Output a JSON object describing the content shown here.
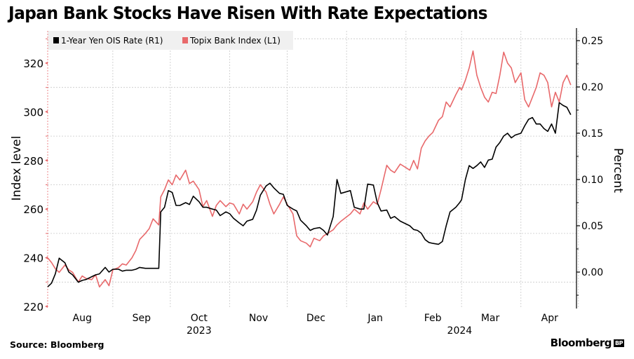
{
  "title": "Japan Bank Stocks Have Risen With Rate Expectations",
  "source": "Source: Bloomberg",
  "brand": "Bloomberg",
  "brand_badge": "BP",
  "colors": {
    "ois": "#000000",
    "topix": "#e8696b",
    "grid": "#c8c8c8",
    "legend_bg": "#f0f0f0"
  },
  "chart_data": {
    "type": "line",
    "title": "Japan Bank Stocks Have Risen With Rate Expectations",
    "xlabel": "",
    "x_range": [
      "2023-07-29",
      "2024-04-30"
    ],
    "x_month_labels": [
      "Aug",
      "Sep",
      "Oct",
      "Nov",
      "Dec",
      "Jan",
      "Feb",
      "Mar",
      "Apr"
    ],
    "x_month_dates": [
      "2023-08-16",
      "2023-09-16",
      "2023-10-16",
      "2023-11-16",
      "2023-12-16",
      "2024-01-16",
      "2024-02-15",
      "2024-03-16",
      "2024-04-16"
    ],
    "x_year_labels": [
      {
        "label": "2023",
        "date": "2023-10-16"
      },
      {
        "label": "2024",
        "date": "2024-02-29"
      }
    ],
    "x_gridlines": [
      "2023-09-01",
      "2023-10-01",
      "2023-11-01",
      "2023-12-01",
      "2024-01-01",
      "2024-02-01",
      "2024-03-01",
      "2024-04-01",
      "2024-05-01"
    ],
    "left_axis": {
      "label": "Index level",
      "ylim": [
        218,
        332
      ],
      "ticks": [
        220,
        240,
        260,
        280,
        300,
        320
      ],
      "minor_ticks": [
        230,
        250,
        270,
        290,
        310,
        330
      ]
    },
    "right_axis": {
      "label": "Percent",
      "ylim": [
        -0.04,
        0.26
      ],
      "ticks": [
        0.0,
        0.05,
        0.1,
        0.15,
        0.2,
        0.25
      ],
      "tick_labels": [
        "0.00",
        "0.05",
        "0.10",
        "0.15",
        "0.20",
        "0.25"
      ],
      "minor_ticks": [
        -0.025,
        0.025,
        0.075,
        0.125,
        0.175,
        0.225
      ]
    },
    "legend": {
      "placement": "top-left",
      "entries": [
        "1-Year Yen OIS Rate (R1)",
        "Topix Bank Index (L1)"
      ]
    },
    "grid": true,
    "series": [
      {
        "name": "1-Year Yen OIS Rate (R1)",
        "axis": "right",
        "color": "#000000",
        "points": [
          [
            "2023-07-29",
            -0.016
          ],
          [
            "2023-07-31",
            -0.012
          ],
          [
            "2023-08-02",
            -0.002
          ],
          [
            "2023-08-04",
            0.015
          ],
          [
            "2023-08-07",
            0.01
          ],
          [
            "2023-08-09",
            0.0
          ],
          [
            "2023-08-11",
            -0.003
          ],
          [
            "2023-08-14",
            -0.011
          ],
          [
            "2023-08-16",
            -0.009
          ],
          [
            "2023-08-18",
            -0.008
          ],
          [
            "2023-08-21",
            -0.005
          ],
          [
            "2023-08-23",
            -0.003
          ],
          [
            "2023-08-25",
            -0.002
          ],
          [
            "2023-08-28",
            0.005
          ],
          [
            "2023-08-30",
            0.0
          ],
          [
            "2023-09-01",
            0.003
          ],
          [
            "2023-09-04",
            0.003
          ],
          [
            "2023-09-06",
            0.001
          ],
          [
            "2023-09-08",
            0.002
          ],
          [
            "2023-09-11",
            0.002
          ],
          [
            "2023-09-13",
            0.003
          ],
          [
            "2023-09-15",
            0.005
          ],
          [
            "2023-09-18",
            0.004
          ],
          [
            "2023-09-20",
            0.004
          ],
          [
            "2023-09-22",
            0.004
          ],
          [
            "2023-09-25",
            0.004
          ],
          [
            "2023-09-26",
            0.065
          ],
          [
            "2023-09-28",
            0.07
          ],
          [
            "2023-09-30",
            0.088
          ],
          [
            "2023-10-02",
            0.086
          ],
          [
            "2023-10-04",
            0.072
          ],
          [
            "2023-10-06",
            0.072
          ],
          [
            "2023-10-09",
            0.075
          ],
          [
            "2023-10-11",
            0.073
          ],
          [
            "2023-10-13",
            0.082
          ],
          [
            "2023-10-16",
            0.076
          ],
          [
            "2023-10-18",
            0.07
          ],
          [
            "2023-10-20",
            0.07
          ],
          [
            "2023-10-23",
            0.068
          ],
          [
            "2023-10-25",
            0.067
          ],
          [
            "2023-10-27",
            0.061
          ],
          [
            "2023-10-30",
            0.065
          ],
          [
            "2023-11-01",
            0.063
          ],
          [
            "2023-11-03",
            0.058
          ],
          [
            "2023-11-06",
            0.053
          ],
          [
            "2023-11-08",
            0.05
          ],
          [
            "2023-11-10",
            0.055
          ],
          [
            "2023-11-13",
            0.057
          ],
          [
            "2023-11-15",
            0.067
          ],
          [
            "2023-11-17",
            0.083
          ],
          [
            "2023-11-20",
            0.093
          ],
          [
            "2023-11-22",
            0.096
          ],
          [
            "2023-11-24",
            0.091
          ],
          [
            "2023-11-27",
            0.085
          ],
          [
            "2023-11-29",
            0.084
          ],
          [
            "2023-12-01",
            0.072
          ],
          [
            "2023-12-04",
            0.068
          ],
          [
            "2023-12-06",
            0.066
          ],
          [
            "2023-12-08",
            0.056
          ],
          [
            "2023-12-11",
            0.05
          ],
          [
            "2023-12-13",
            0.045
          ],
          [
            "2023-12-15",
            0.047
          ],
          [
            "2023-12-18",
            0.048
          ],
          [
            "2023-12-20",
            0.045
          ],
          [
            "2023-12-22",
            0.04
          ],
          [
            "2023-12-25",
            0.06
          ],
          [
            "2023-12-27",
            0.1
          ],
          [
            "2023-12-29",
            0.085
          ],
          [
            "2024-01-03",
            0.088
          ],
          [
            "2024-01-05",
            0.07
          ],
          [
            "2024-01-08",
            0.068
          ],
          [
            "2024-01-10",
            0.068
          ],
          [
            "2024-01-12",
            0.095
          ],
          [
            "2024-01-15",
            0.094
          ],
          [
            "2024-01-17",
            0.075
          ],
          [
            "2024-01-19",
            0.066
          ],
          [
            "2024-01-22",
            0.067
          ],
          [
            "2024-01-24",
            0.058
          ],
          [
            "2024-01-26",
            0.06
          ],
          [
            "2024-01-29",
            0.055
          ],
          [
            "2024-02-01",
            0.052
          ],
          [
            "2024-02-03",
            0.05
          ],
          [
            "2024-02-05",
            0.046
          ],
          [
            "2024-02-07",
            0.045
          ],
          [
            "2024-02-09",
            0.042
          ],
          [
            "2024-02-11",
            0.035
          ],
          [
            "2024-02-13",
            0.032
          ],
          [
            "2024-02-15",
            0.031
          ],
          [
            "2024-02-18",
            0.03
          ],
          [
            "2024-02-20",
            0.033
          ],
          [
            "2024-02-22",
            0.05
          ],
          [
            "2024-02-24",
            0.065
          ],
          [
            "2024-02-27",
            0.07
          ],
          [
            "2024-02-29",
            0.075
          ],
          [
            "2024-03-01",
            0.078
          ],
          [
            "2024-03-03",
            0.1
          ],
          [
            "2024-03-05",
            0.115
          ],
          [
            "2024-03-07",
            0.112
          ],
          [
            "2024-03-09",
            0.115
          ],
          [
            "2024-03-11",
            0.119
          ],
          [
            "2024-03-13",
            0.113
          ],
          [
            "2024-03-15",
            0.121
          ],
          [
            "2024-03-17",
            0.122
          ],
          [
            "2024-03-19",
            0.135
          ],
          [
            "2024-03-21",
            0.14
          ],
          [
            "2024-03-23",
            0.147
          ],
          [
            "2024-03-25",
            0.15
          ],
          [
            "2024-03-27",
            0.145
          ],
          [
            "2024-03-29",
            0.148
          ],
          [
            "2024-04-01",
            0.15
          ],
          [
            "2024-04-03",
            0.158
          ],
          [
            "2024-04-05",
            0.165
          ],
          [
            "2024-04-07",
            0.167
          ],
          [
            "2024-04-09",
            0.16
          ],
          [
            "2024-04-11",
            0.16
          ],
          [
            "2024-04-13",
            0.155
          ],
          [
            "2024-04-15",
            0.152
          ],
          [
            "2024-04-17",
            0.16
          ],
          [
            "2024-04-19",
            0.15
          ],
          [
            "2024-04-21",
            0.183
          ],
          [
            "2024-04-23",
            0.18
          ],
          [
            "2024-04-25",
            0.178
          ],
          [
            "2024-04-27",
            0.17
          ]
        ]
      },
      {
        "name": "Topix Bank Index (L1)",
        "axis": "left",
        "color": "#e8696b",
        "points": [
          [
            "2023-07-29",
            240.0
          ],
          [
            "2023-07-31",
            238.0
          ],
          [
            "2023-08-02",
            235.5
          ],
          [
            "2023-08-04",
            234.0
          ],
          [
            "2023-08-07",
            237.0
          ],
          [
            "2023-08-09",
            235.0
          ],
          [
            "2023-08-11",
            234.0
          ],
          [
            "2023-08-14",
            230.0
          ],
          [
            "2023-08-16",
            232.5
          ],
          [
            "2023-08-18",
            231.5
          ],
          [
            "2023-08-21",
            231.0
          ],
          [
            "2023-08-23",
            233.0
          ],
          [
            "2023-08-25",
            228.0
          ],
          [
            "2023-08-28",
            231.0
          ],
          [
            "2023-08-30",
            228.5
          ],
          [
            "2023-09-01",
            235.0
          ],
          [
            "2023-09-04",
            236.0
          ],
          [
            "2023-09-06",
            237.5
          ],
          [
            "2023-09-08",
            237.0
          ],
          [
            "2023-09-11",
            240.0
          ],
          [
            "2023-09-13",
            243.0
          ],
          [
            "2023-09-15",
            247.5
          ],
          [
            "2023-09-18",
            250.0
          ],
          [
            "2023-09-20",
            252.0
          ],
          [
            "2023-09-22",
            256.0
          ],
          [
            "2023-09-25",
            253.5
          ],
          [
            "2023-09-26",
            265.0
          ],
          [
            "2023-09-28",
            268.0
          ],
          [
            "2023-09-30",
            272.0
          ],
          [
            "2023-10-02",
            270.0
          ],
          [
            "2023-10-04",
            274.0
          ],
          [
            "2023-10-06",
            272.0
          ],
          [
            "2023-10-09",
            276.0
          ],
          [
            "2023-10-11",
            270.5
          ],
          [
            "2023-10-13",
            271.5
          ],
          [
            "2023-10-16",
            268.0
          ],
          [
            "2023-10-18",
            261.0
          ],
          [
            "2023-10-20",
            263.5
          ],
          [
            "2023-10-23",
            257.0
          ],
          [
            "2023-10-25",
            261.5
          ],
          [
            "2023-10-27",
            263.5
          ],
          [
            "2023-10-30",
            261.0
          ],
          [
            "2023-11-01",
            262.5
          ],
          [
            "2023-11-03",
            262.0
          ],
          [
            "2023-11-06",
            258.0
          ],
          [
            "2023-11-08",
            262.0
          ],
          [
            "2023-11-10",
            260.0
          ],
          [
            "2023-11-13",
            263.0
          ],
          [
            "2023-11-15",
            267.0
          ],
          [
            "2023-11-17",
            270.0
          ],
          [
            "2023-11-20",
            267.0
          ],
          [
            "2023-11-22",
            262.0
          ],
          [
            "2023-11-24",
            258.0
          ],
          [
            "2023-11-27",
            262.0
          ],
          [
            "2023-11-29",
            265.0
          ],
          [
            "2023-12-01",
            262.0
          ],
          [
            "2023-12-04",
            258.0
          ],
          [
            "2023-12-06",
            249.0
          ],
          [
            "2023-12-08",
            247.0
          ],
          [
            "2023-12-11",
            246.0
          ],
          [
            "2023-12-13",
            244.5
          ],
          [
            "2023-12-15",
            248.0
          ],
          [
            "2023-12-18",
            247.0
          ],
          [
            "2023-12-20",
            249.0
          ],
          [
            "2023-12-22",
            250.0
          ],
          [
            "2023-12-25",
            251.5
          ],
          [
            "2023-12-27",
            253.5
          ],
          [
            "2023-12-29",
            255.0
          ],
          [
            "2024-01-03",
            258.0
          ],
          [
            "2024-01-05",
            260.0
          ],
          [
            "2024-01-08",
            258.0
          ],
          [
            "2024-01-10",
            262.5
          ],
          [
            "2024-01-12",
            260.0
          ],
          [
            "2024-01-15",
            263.0
          ],
          [
            "2024-01-17",
            262.0
          ],
          [
            "2024-01-19",
            268.0
          ],
          [
            "2024-01-22",
            278.0
          ],
          [
            "2024-01-24",
            276.0
          ],
          [
            "2024-01-26",
            275.0
          ],
          [
            "2024-01-29",
            278.5
          ],
          [
            "2024-02-01",
            277.0
          ],
          [
            "2024-02-03",
            276.0
          ],
          [
            "2024-02-05",
            280.0
          ],
          [
            "2024-02-07",
            276.5
          ],
          [
            "2024-02-09",
            285.0
          ],
          [
            "2024-02-11",
            288.0
          ],
          [
            "2024-02-13",
            290.0
          ],
          [
            "2024-02-15",
            291.5
          ],
          [
            "2024-02-18",
            296.5
          ],
          [
            "2024-02-20",
            298.0
          ],
          [
            "2024-02-22",
            304.0
          ],
          [
            "2024-02-24",
            302.0
          ],
          [
            "2024-02-27",
            307.0
          ],
          [
            "2024-02-29",
            310.0
          ],
          [
            "2024-03-01",
            309.0
          ],
          [
            "2024-03-03",
            313.0
          ],
          [
            "2024-03-05",
            318.0
          ],
          [
            "2024-03-07",
            325.0
          ],
          [
            "2024-03-09",
            315.0
          ],
          [
            "2024-03-11",
            310.0
          ],
          [
            "2024-03-13",
            306.0
          ],
          [
            "2024-03-15",
            304.0
          ],
          [
            "2024-03-17",
            308.0
          ],
          [
            "2024-03-19",
            307.5
          ],
          [
            "2024-03-21",
            315.0
          ],
          [
            "2024-03-23",
            324.5
          ],
          [
            "2024-03-25",
            320.0
          ],
          [
            "2024-03-27",
            318.0
          ],
          [
            "2024-03-29",
            312.0
          ],
          [
            "2024-04-01",
            316.0
          ],
          [
            "2024-04-03",
            305.0
          ],
          [
            "2024-04-05",
            302.0
          ],
          [
            "2024-04-07",
            306.0
          ],
          [
            "2024-04-09",
            310.0
          ],
          [
            "2024-04-11",
            316.0
          ],
          [
            "2024-04-13",
            315.0
          ],
          [
            "2024-04-15",
            312.0
          ],
          [
            "2024-04-17",
            302.0
          ],
          [
            "2024-04-19",
            308.0
          ],
          [
            "2024-04-21",
            304.0
          ],
          [
            "2024-04-23",
            312.0
          ],
          [
            "2024-04-25",
            315.0
          ],
          [
            "2024-04-27",
            311.0
          ]
        ]
      }
    ]
  }
}
